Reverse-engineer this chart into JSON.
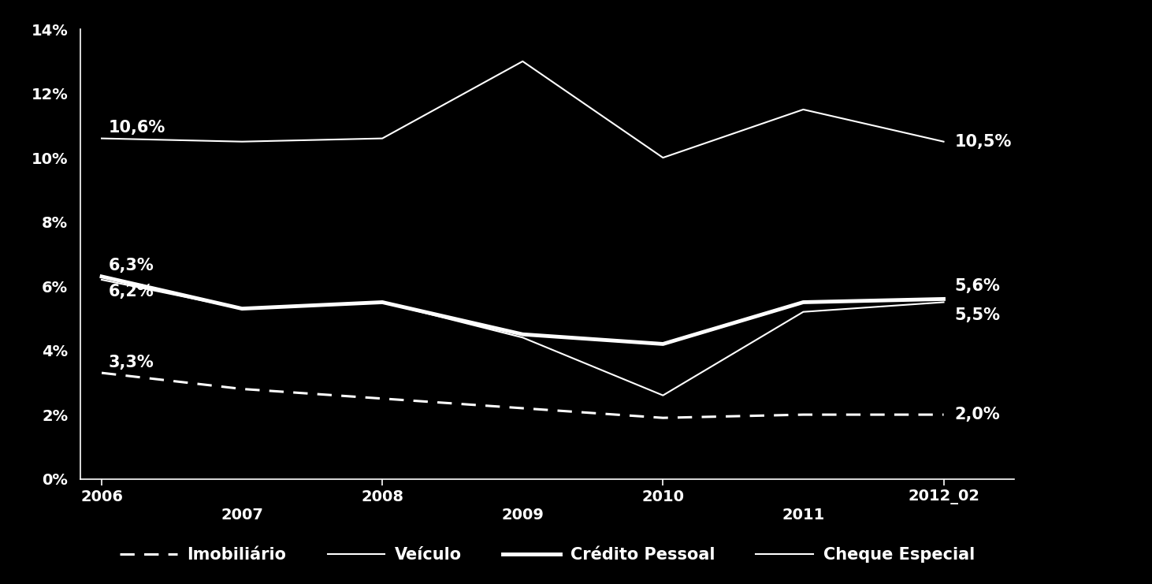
{
  "x_labels": [
    "2006",
    "2007",
    "2008",
    "2009",
    "2010",
    "2011",
    "2012_02"
  ],
  "x_values": [
    0,
    1,
    2,
    3,
    4,
    5,
    6
  ],
  "cheque_especial": [
    10.6,
    10.5,
    10.6,
    13.0,
    10.0,
    11.5,
    10.5
  ],
  "credito_pessoal": [
    6.3,
    5.3,
    5.5,
    4.5,
    4.2,
    5.5,
    5.6
  ],
  "veiculo": [
    6.2,
    5.3,
    5.5,
    4.4,
    2.6,
    5.2,
    5.5
  ],
  "imobiliario": [
    3.3,
    2.8,
    2.5,
    2.2,
    1.9,
    2.0,
    2.0
  ],
  "label_start_cheque": "10,6%",
  "label_end_cheque": "10,5%",
  "label_start_credito": "6,3%",
  "label_end_credito": "5,6%",
  "label_start_veiculo": "6,2%",
  "label_end_veiculo": "5,5%",
  "label_start_imob": "3,3%",
  "label_end_imob": "2,0%",
  "background_color": "#000000",
  "text_color": "#ffffff",
  "line_color": "#ffffff",
  "ylim": [
    0,
    14
  ],
  "yticks": [
    0,
    2,
    4,
    6,
    8,
    10,
    12,
    14
  ],
  "ytick_labels": [
    "0%",
    "2%",
    "4%",
    "6%",
    "8%",
    "10%",
    "12%",
    "14%"
  ],
  "legend_labels": [
    "Imobiliário",
    "Veículo",
    "Crédito Pessoal",
    "Cheque Especial"
  ],
  "xtick_positions": [
    0,
    2,
    4,
    6
  ],
  "fontsize_labels": 15,
  "fontsize_ticks": 14
}
